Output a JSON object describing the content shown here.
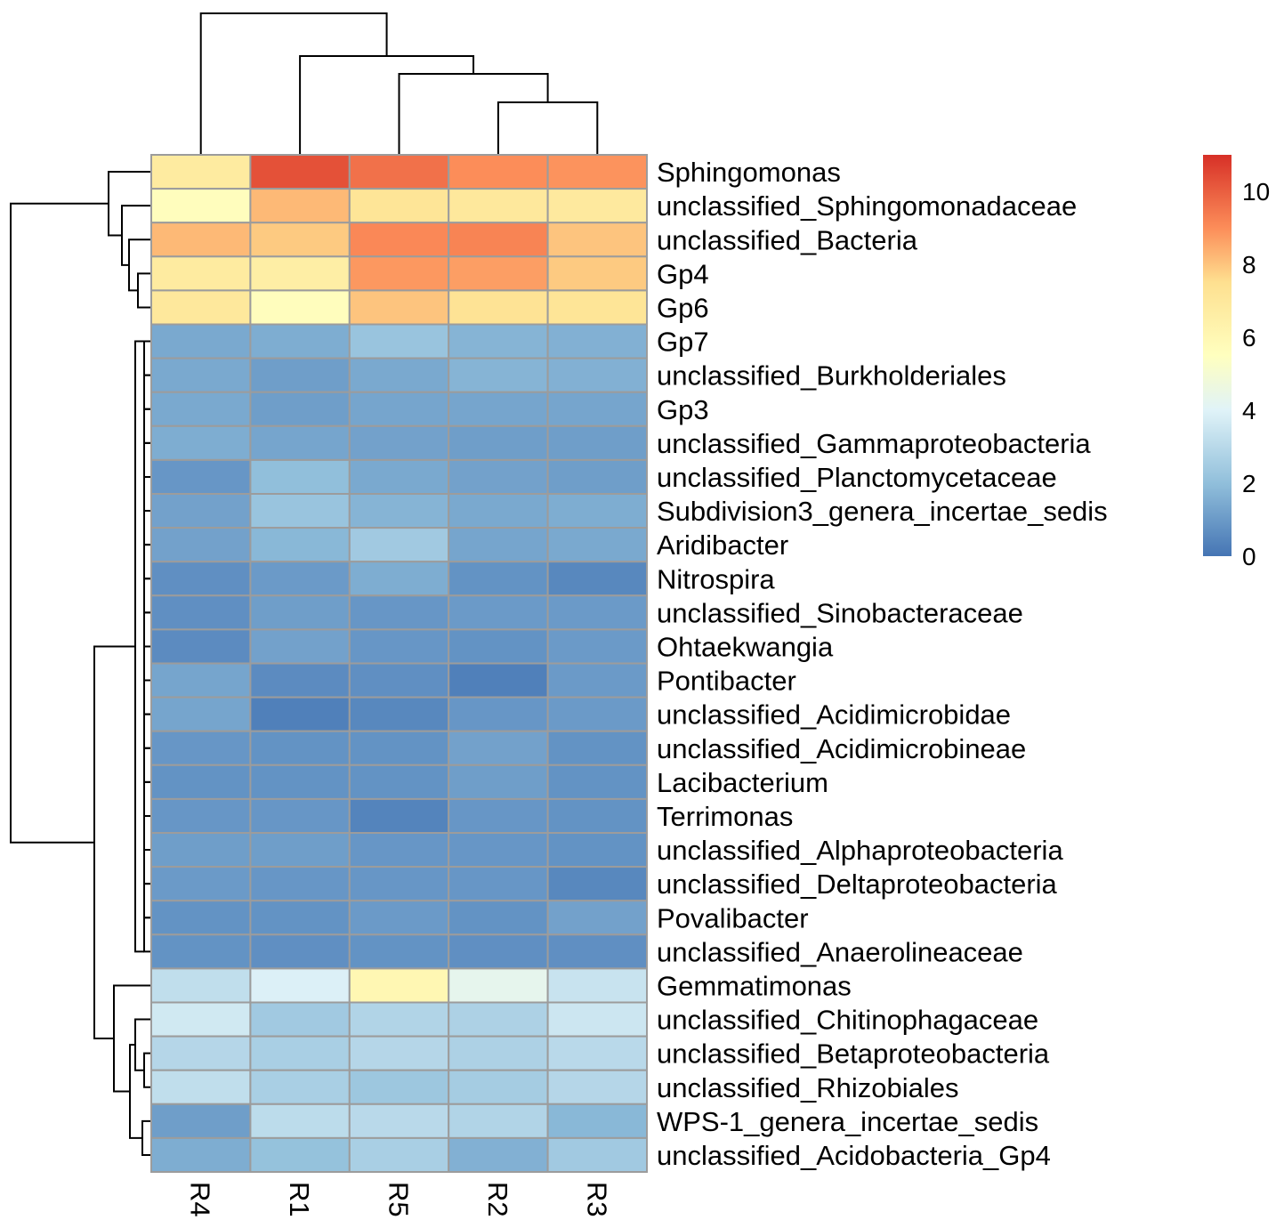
{
  "chart_data": {
    "type": "heatmap",
    "title": "",
    "columns": [
      "R4",
      "R1",
      "R5",
      "R2",
      "R3"
    ],
    "rows": [
      "Sphingomonas",
      "unclassified_Sphingomonadaceae",
      "unclassified_Bacteria",
      "Gp4",
      "Gp6",
      "Gp7",
      "unclassified_Burkholderiales",
      "Gp3",
      "unclassified_Gammaproteobacteria",
      "unclassified_Planctomycetaceae",
      "Subdivision3_genera_incertae_sedis",
      "Aridibacter",
      "Nitrospira",
      "unclassified_Sinobacteraceae",
      "Ohtaekwangia",
      "Pontibacter",
      "unclassified_Acidimicrobidae",
      "unclassified_Acidimicrobineae",
      "Lacibacterium",
      "Terrimonas",
      "unclassified_Alphaproteobacteria",
      "unclassified_Deltaproteobacteria",
      "Povalibacter",
      "unclassified_Anaerolineaceae",
      "Gemmatimonas",
      "unclassified_Chitinophagaceae",
      "unclassified_Betaproteobacteria",
      "unclassified_Rhizobiales",
      "WPS-1_genera_incertae_sedis",
      "unclassified_Acidobacteria_Gp4"
    ],
    "values": [
      [
        6.8,
        10.3,
        9.6,
        9.0,
        8.9
      ],
      [
        5.6,
        8.2,
        7.2,
        7.0,
        6.9
      ],
      [
        8.2,
        7.9,
        9.1,
        9.2,
        8.0
      ],
      [
        6.8,
        6.6,
        8.8,
        8.7,
        7.9
      ],
      [
        7.0,
        5.6,
        8.0,
        7.3,
        7.2
      ],
      [
        1.4,
        1.5,
        2.2,
        1.7,
        1.6
      ],
      [
        1.4,
        1.1,
        1.4,
        1.7,
        1.6
      ],
      [
        1.4,
        1.1,
        1.3,
        1.3,
        1.3
      ],
      [
        1.5,
        1.3,
        1.2,
        1.1,
        1.1
      ],
      [
        0.9,
        2.0,
        1.4,
        1.2,
        1.1
      ],
      [
        1.2,
        2.2,
        1.7,
        1.4,
        1.5
      ],
      [
        1.2,
        1.8,
        2.4,
        1.3,
        1.4
      ],
      [
        0.7,
        1.0,
        1.5,
        0.8,
        0.5
      ],
      [
        0.7,
        1.1,
        0.9,
        1.0,
        1.0
      ],
      [
        0.6,
        1.2,
        0.9,
        0.8,
        1.0
      ],
      [
        1.3,
        0.6,
        0.7,
        0.3,
        1.0
      ],
      [
        1.3,
        0.3,
        0.5,
        0.9,
        1.0
      ],
      [
        0.9,
        0.8,
        0.8,
        1.2,
        0.8
      ],
      [
        0.8,
        0.8,
        0.8,
        1.1,
        0.8
      ],
      [
        0.9,
        0.9,
        0.4,
        0.9,
        0.8
      ],
      [
        1.1,
        1.1,
        0.9,
        0.9,
        0.8
      ],
      [
        1.0,
        0.9,
        0.9,
        0.9,
        0.5
      ],
      [
        0.8,
        0.8,
        1.0,
        0.8,
        1.2
      ],
      [
        0.8,
        0.7,
        0.8,
        0.7,
        0.7
      ],
      [
        3.2,
        3.9,
        6.0,
        4.3,
        3.4
      ],
      [
        3.6,
        2.4,
        2.8,
        2.7,
        3.5
      ],
      [
        2.9,
        2.6,
        2.9,
        2.7,
        3.0
      ],
      [
        3.2,
        2.6,
        2.3,
        2.5,
        2.9
      ],
      [
        1.1,
        3.1,
        3.0,
        2.8,
        1.8
      ],
      [
        1.5,
        2.1,
        2.6,
        1.6,
        2.4
      ]
    ],
    "color_scale": {
      "min": 0,
      "max": 11,
      "ticks": [
        0,
        2,
        4,
        6,
        8,
        10
      ],
      "stops": [
        {
          "v": 0,
          "color": "#4575b4"
        },
        {
          "v": 2,
          "color": "#91bfdb"
        },
        {
          "v": 4,
          "color": "#e0f3f8"
        },
        {
          "v": 5.5,
          "color": "#ffffbf"
        },
        {
          "v": 7.5,
          "color": "#fee090"
        },
        {
          "v": 9,
          "color": "#fc8d59"
        },
        {
          "v": 11,
          "color": "#d73027"
        }
      ]
    },
    "legend_position": "top-right",
    "column_dendrogram": [
      {
        "a": "R2",
        "b": "R3",
        "h": 1.0
      },
      {
        "a": "R5",
        "b": "R2+R3",
        "h": 2.0
      },
      {
        "a": "R1",
        "b": "R5+R2+R3",
        "h": 3.0
      },
      {
        "a": "R4",
        "b": "R1+R5+R2+R3",
        "h": 4.0
      }
    ]
  }
}
